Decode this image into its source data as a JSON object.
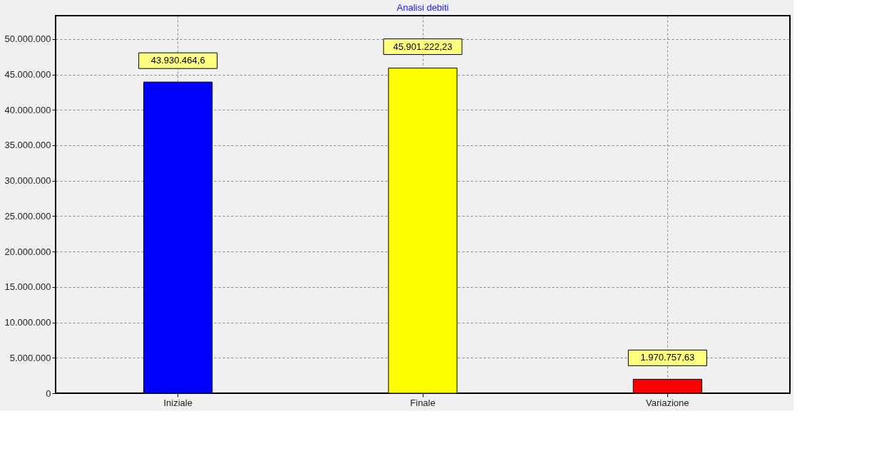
{
  "chart_data": {
    "type": "bar",
    "title": "Analisi debiti",
    "categories": [
      "Iniziale",
      "Finale",
      "Variazione"
    ],
    "values": [
      43930464.6,
      45901222.23,
      1970757.63
    ],
    "colors": [
      "#0000ff",
      "#ffff00",
      "#ff0000"
    ],
    "value_labels": [
      "43.930.464,6",
      "45.901.222,23",
      "1.970.757,63"
    ],
    "ylim": [
      0,
      53300000
    ],
    "yticks": [
      {
        "value": 0,
        "label": "0"
      },
      {
        "value": 5000000,
        "label": "5.000.000"
      },
      {
        "value": 10000000,
        "label": "10.000.000"
      },
      {
        "value": 15000000,
        "label": "15.000.000"
      },
      {
        "value": 20000000,
        "label": "20.000.000"
      },
      {
        "value": 25000000,
        "label": "25.000.000"
      },
      {
        "value": 30000000,
        "label": "30.000.000"
      },
      {
        "value": 35000000,
        "label": "35.000.000"
      },
      {
        "value": 40000000,
        "label": "40.000.000"
      },
      {
        "value": 45000000,
        "label": "45.000.000"
      },
      {
        "value": 50000000,
        "label": "50.000.000"
      }
    ],
    "grid": true
  }
}
